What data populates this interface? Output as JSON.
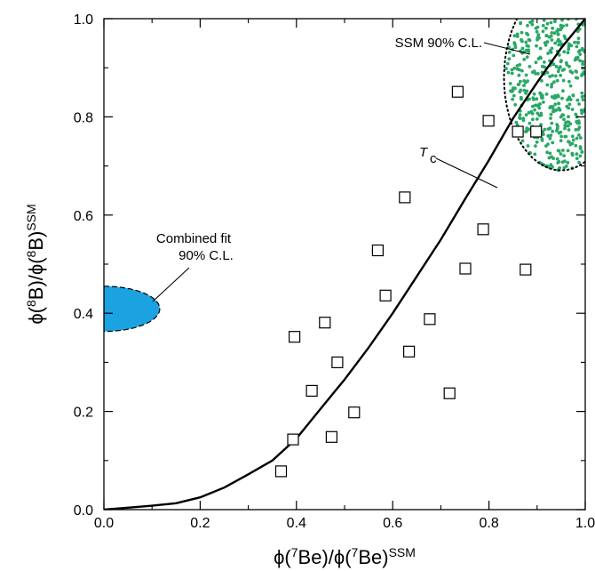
{
  "chart_data": {
    "type": "scatter",
    "xlim": [
      0.0,
      1.0
    ],
    "ylim": [
      0.0,
      1.0
    ],
    "xticks": [
      "0.0",
      "0.2",
      "0.4",
      "0.6",
      "0.8",
      "1.0"
    ],
    "yticks": [
      "0.0",
      "0.2",
      "0.4",
      "0.6",
      "0.8",
      "1.0"
    ],
    "xlabel": {
      "pre": "ϕ(",
      "sup1": "7",
      "mid": "Be)/ϕ(",
      "sup2": "7",
      "post": "Be)",
      "sup3": "SSM"
    },
    "ylabel": {
      "pre": "ϕ(",
      "sup1": "8",
      "mid": "B)/ϕ(",
      "sup2": "8",
      "post": "B)",
      "sup3": "SSM"
    },
    "grid": false,
    "models": {
      "marker": "open-square",
      "points": [
        [
          0.368,
          0.078
        ],
        [
          0.393,
          0.143
        ],
        [
          0.396,
          0.352
        ],
        [
          0.432,
          0.242
        ],
        [
          0.459,
          0.381
        ],
        [
          0.473,
          0.148
        ],
        [
          0.485,
          0.3
        ],
        [
          0.52,
          0.198
        ],
        [
          0.569,
          0.528
        ],
        [
          0.585,
          0.436
        ],
        [
          0.625,
          0.636
        ],
        [
          0.634,
          0.322
        ],
        [
          0.677,
          0.388
        ],
        [
          0.718,
          0.237
        ],
        [
          0.735,
          0.851
        ],
        [
          0.751,
          0.491
        ],
        [
          0.788,
          0.571
        ],
        [
          0.799,
          0.792
        ],
        [
          0.86,
          0.77
        ],
        [
          0.876,
          0.489
        ],
        [
          0.898,
          0.77
        ]
      ]
    },
    "tc_curve": {
      "label": "T",
      "label_sub": "c",
      "points": [
        [
          0.0,
          0.0
        ],
        [
          0.05,
          0.004
        ],
        [
          0.1,
          0.008
        ],
        [
          0.15,
          0.013
        ],
        [
          0.2,
          0.025
        ],
        [
          0.25,
          0.045
        ],
        [
          0.3,
          0.072
        ],
        [
          0.35,
          0.1
        ],
        [
          0.4,
          0.145
        ],
        [
          0.45,
          0.205
        ],
        [
          0.5,
          0.265
        ],
        [
          0.55,
          0.33
        ],
        [
          0.6,
          0.4
        ],
        [
          0.65,
          0.475
        ],
        [
          0.7,
          0.55
        ],
        [
          0.75,
          0.632
        ],
        [
          0.8,
          0.712
        ],
        [
          0.85,
          0.797
        ],
        [
          0.9,
          0.87
        ],
        [
          0.95,
          0.94
        ],
        [
          1.0,
          1.0
        ]
      ]
    },
    "ssm_region": {
      "label": "SSM 90% C.L.",
      "color": "#2aa866",
      "n_points": 420,
      "x_range": [
        0.83,
        1.0
      ],
      "y_range": [
        0.69,
        1.0
      ],
      "contour_color": "#000000"
    },
    "combined_fit": {
      "label_line1": "Combined fit",
      "label_line2": "90% C.L.",
      "color": "#1aa3e0",
      "x_range": [
        0.0,
        0.116
      ],
      "y_range": [
        0.363,
        0.455
      ]
    }
  }
}
